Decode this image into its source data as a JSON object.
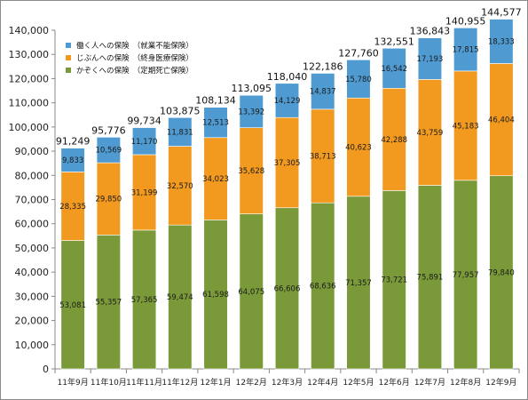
{
  "chart_data": {
    "type": "bar",
    "stacked": true,
    "categories": [
      "11年9月",
      "11年10月",
      "11年11月",
      "11年12月",
      "12年1月",
      "12年2月",
      "12年3月",
      "12年4月",
      "12年5月",
      "12年6月",
      "12年7月",
      "12年8月",
      "12年9月"
    ],
    "ylim": [
      0,
      140000
    ],
    "yticks": [
      "0",
      "10,000",
      "20,000",
      "30,000",
      "40,000",
      "50,000",
      "60,000",
      "70,000",
      "80,000",
      "90,000",
      "100,000",
      "110,000",
      "120,000",
      "130,000",
      "140,000"
    ],
    "grid": false,
    "legend_position": "top-left",
    "series": [
      {
        "name": "かぞくへの保険　（定期死亡保険）",
        "color": "#7a9a3a",
        "values": [
          53081,
          55357,
          57365,
          59474,
          61598,
          64075,
          66606,
          68636,
          71357,
          73721,
          75891,
          77957,
          79840
        ],
        "labels": [
          "53,081",
          "55,357",
          "57,365",
          "59,474",
          "61,598",
          "64,075",
          "66,606",
          "68,636",
          "71,357",
          "73,721",
          "75,891",
          "77,957",
          "79,840"
        ]
      },
      {
        "name": "じぶんへの保険　（終身医療保険）",
        "color": "#f29a1f",
        "values": [
          28335,
          29850,
          31199,
          32570,
          34023,
          35628,
          37305,
          38713,
          40623,
          42288,
          43759,
          45183,
          46404
        ],
        "labels": [
          "28,335",
          "29,850",
          "31,199",
          "32,570",
          "34,023",
          "35,628",
          "37,305",
          "38,713",
          "40,623",
          "42,288",
          "43,759",
          "45,183",
          "46,404"
        ]
      },
      {
        "name": "働く人への保険　（就業不能保険）",
        "color": "#4f9bd1",
        "values": [
          9833,
          10569,
          11170,
          11831,
          12513,
          13392,
          14129,
          14837,
          15780,
          16542,
          17193,
          17815,
          18333
        ],
        "labels": [
          "9,833",
          "10,569",
          "11,170",
          "11,831",
          "12,513",
          "13,392",
          "14,129",
          "14,837",
          "15,780",
          "16,542",
          "17,193",
          "17,815",
          "18,333"
        ]
      }
    ],
    "totals": [
      91249,
      95776,
      99734,
      103875,
      108134,
      113095,
      118040,
      122186,
      127760,
      132551,
      136843,
      140955,
      144577
    ],
    "total_labels": [
      "91,249",
      "95,776",
      "99,734",
      "103,875",
      "108,134",
      "113,095",
      "118,040",
      "122,186",
      "127,760",
      "132,551",
      "136,843",
      "140,955",
      "144,577"
    ],
    "legend": [
      {
        "name": "働く人への保険　（就業不能保険）",
        "color": "#4f9bd1"
      },
      {
        "name": "じぶんへの保険　（終身医療保険）",
        "color": "#f29a1f"
      },
      {
        "name": "かぞくへの保険　（定期死亡保険）",
        "color": "#7a9a3a"
      }
    ]
  }
}
